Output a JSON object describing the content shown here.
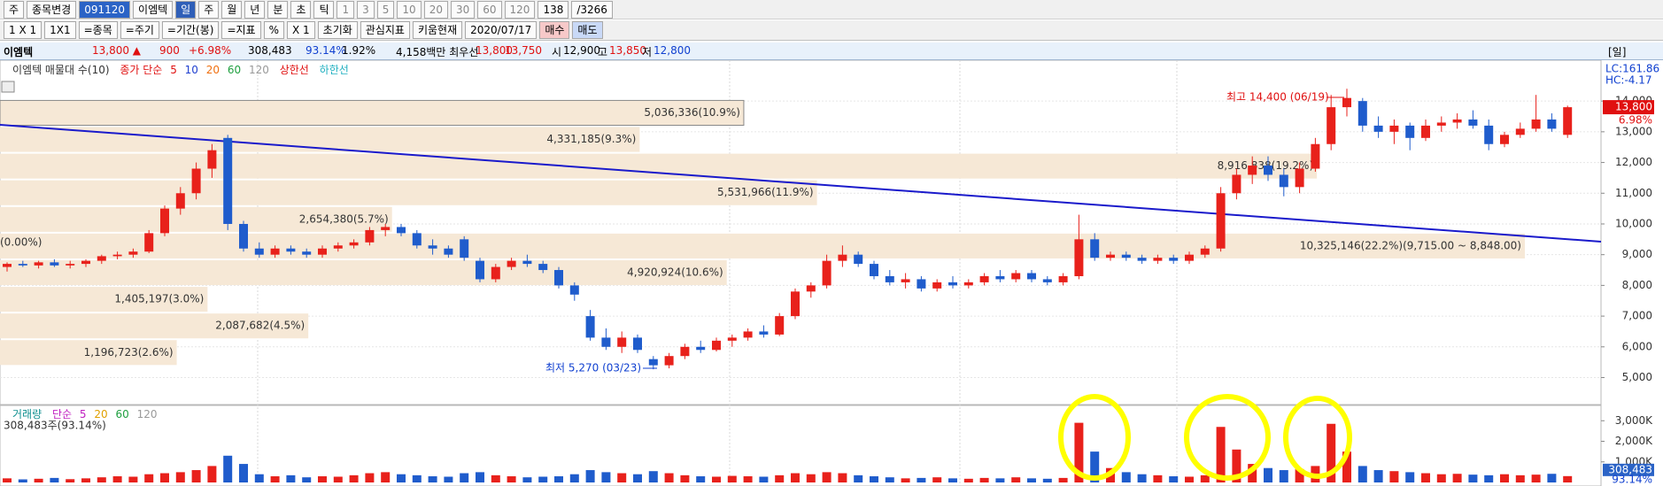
{
  "toolbar": {
    "row1": [
      "주",
      "종목변경",
      "091120",
      "이엠텍",
      "일",
      "주",
      "월",
      "년",
      "분",
      "초",
      "틱",
      "1",
      "3",
      "5",
      "10",
      "20",
      "30",
      "60",
      "120",
      "138",
      "/3266"
    ],
    "row2": [
      "1 X 1",
      "1X1",
      "=종목",
      "=주기",
      "=기간(봉)",
      "=지표",
      "%",
      "X 1",
      "초기화",
      "관심지표",
      "키움현재",
      "2020/07/17",
      "매수",
      "매도"
    ]
  },
  "info": {
    "name": "이엠텍",
    "price": "13,800 ▲",
    "change": "900",
    "change_pct": "+6.98%",
    "volume": "308,483",
    "volume_ratio": "93.14%",
    "turnover": "1.92%",
    "amount": "4,158백만 최우선",
    "ask": "13,800",
    "bid": "13,750",
    "open_label": "시",
    "open": "12,900",
    "high_label": "고",
    "high": "13,850",
    "low_label": "저",
    "low": "12,800",
    "period": "[일]"
  },
  "chart_data": {
    "type": "candlestick",
    "legend": [
      "이엠텍 매물대 수(10)",
      "종가 단순",
      "5",
      "10",
      "20",
      "60",
      "120",
      "상한선",
      "하한선"
    ],
    "indicators": [
      "LC:161.86",
      "HC:-4.17"
    ],
    "price_tag": "13,800",
    "price_tag_pct": "6.98%",
    "left_note": "(0.00%)",
    "annotations": [
      "최고 14,400 (06/19)",
      "최저 5,270 (03/23)"
    ],
    "ylim": [
      4150,
      15330
    ],
    "yticks": [
      {
        "value": 14000,
        "label": "14,000"
      },
      {
        "value": 13000,
        "label": "13,000"
      },
      {
        "value": 12000,
        "label": "12,000"
      },
      {
        "value": 11000,
        "label": "11,000"
      },
      {
        "value": 10000,
        "label": "10,000"
      },
      {
        "value": 9000,
        "label": "9,000"
      },
      {
        "value": 8000,
        "label": "8,000"
      },
      {
        "value": 7000,
        "label": "7,000"
      },
      {
        "value": 6000,
        "label": "6,000"
      },
      {
        "value": 5000,
        "label": "5,000"
      }
    ],
    "volume_profile": [
      {
        "low": 13183,
        "high": 14050,
        "volume": 5036336,
        "label": "5,036,336(10.9%)"
      },
      {
        "low": 12316,
        "high": 13183,
        "volume": 4331185,
        "label": "4,331,185(9.3%)"
      },
      {
        "low": 11449,
        "high": 12316,
        "volume": 8916838,
        "label": "8,916,838(19.2%)"
      },
      {
        "low": 10582,
        "high": 11449,
        "volume": 5531966,
        "label": "5,531,966(11.9%)"
      },
      {
        "low": 9715,
        "high": 10582,
        "volume": 2654380,
        "label": "2,654,380(5.7%)"
      },
      {
        "low": 8848,
        "high": 9715,
        "volume": 10325146,
        "label": "10,325,146(22.2%)(9,715.00 ~ 8,848.00)"
      },
      {
        "low": 7981,
        "high": 8848,
        "volume": 4920924,
        "label": "4,920,924(10.6%)"
      },
      {
        "low": 7114,
        "high": 7981,
        "volume": 1405197,
        "label": "1,405,197(3.0%)"
      },
      {
        "low": 6247,
        "high": 7114,
        "volume": 2087682,
        "label": "2,087,682(4.5%)"
      },
      {
        "low": 5380,
        "high": 6247,
        "volume": 1196723,
        "label": "1,196,723(2.6%)"
      }
    ],
    "candles": [
      [
        8600,
        8750,
        8450,
        8700
      ],
      [
        8700,
        8800,
        8600,
        8650
      ],
      [
        8650,
        8800,
        8550,
        8750
      ],
      [
        8750,
        8850,
        8600,
        8650
      ],
      [
        8650,
        8800,
        8550,
        8700
      ],
      [
        8700,
        8850,
        8600,
        8800
      ],
      [
        8800,
        9000,
        8700,
        8950
      ],
      [
        8950,
        9100,
        8850,
        9000
      ],
      [
        9000,
        9200,
        8900,
        9100
      ],
      [
        9100,
        9800,
        9050,
        9700
      ],
      [
        9700,
        10600,
        9600,
        10500
      ],
      [
        10500,
        11200,
        10300,
        11000
      ],
      [
        11000,
        12000,
        10800,
        11800
      ],
      [
        11800,
        12600,
        11500,
        12400
      ],
      [
        12800,
        12900,
        9800,
        10000
      ],
      [
        10000,
        10100,
        9100,
        9200
      ],
      [
        9200,
        9400,
        8900,
        9000
      ],
      [
        9000,
        9300,
        8900,
        9200
      ],
      [
        9200,
        9300,
        9000,
        9100
      ],
      [
        9100,
        9200,
        8900,
        9000
      ],
      [
        9000,
        9300,
        8900,
        9200
      ],
      [
        9200,
        9400,
        9100,
        9300
      ],
      [
        9300,
        9500,
        9200,
        9400
      ],
      [
        9400,
        9900,
        9300,
        9800
      ],
      [
        9800,
        10000,
        9600,
        9900
      ],
      [
        9900,
        10000,
        9600,
        9700
      ],
      [
        9700,
        9800,
        9200,
        9300
      ],
      [
        9300,
        9500,
        9000,
        9200
      ],
      [
        9200,
        9300,
        8900,
        9000
      ],
      [
        9500,
        9600,
        8800,
        8900
      ],
      [
        8800,
        8900,
        8100,
        8200
      ],
      [
        8200,
        8700,
        8100,
        8600
      ],
      [
        8600,
        8900,
        8500,
        8800
      ],
      [
        8800,
        9000,
        8600,
        8700
      ],
      [
        8700,
        8800,
        8400,
        8500
      ],
      [
        8500,
        8600,
        7900,
        8000
      ],
      [
        8000,
        8100,
        7500,
        7700
      ],
      [
        7000,
        7200,
        6200,
        6300
      ],
      [
        6300,
        6600,
        5900,
        6000
      ],
      [
        6000,
        6500,
        5800,
        6300
      ],
      [
        6300,
        6400,
        5800,
        5900
      ],
      [
        5600,
        5700,
        5270,
        5400
      ],
      [
        5400,
        5800,
        5300,
        5700
      ],
      [
        5700,
        6100,
        5600,
        6000
      ],
      [
        6000,
        6200,
        5800,
        5900
      ],
      [
        5900,
        6300,
        5850,
        6200
      ],
      [
        6200,
        6400,
        6000,
        6300
      ],
      [
        6300,
        6600,
        6200,
        6500
      ],
      [
        6500,
        6700,
        6300,
        6400
      ],
      [
        6400,
        7100,
        6350,
        7000
      ],
      [
        7000,
        7900,
        6900,
        7800
      ],
      [
        7800,
        8100,
        7600,
        8000
      ],
      [
        8000,
        9000,
        7900,
        8800
      ],
      [
        8800,
        9300,
        8600,
        9000
      ],
      [
        9000,
        9100,
        8600,
        8700
      ],
      [
        8700,
        8800,
        8200,
        8300
      ],
      [
        8300,
        8500,
        8000,
        8100
      ],
      [
        8100,
        8400,
        7900,
        8200
      ],
      [
        8200,
        8300,
        7800,
        7900
      ],
      [
        7900,
        8200,
        7800,
        8100
      ],
      [
        8100,
        8300,
        7900,
        8000
      ],
      [
        8000,
        8200,
        7900,
        8100
      ],
      [
        8100,
        8400,
        8000,
        8300
      ],
      [
        8300,
        8500,
        8100,
        8200
      ],
      [
        8200,
        8500,
        8100,
        8400
      ],
      [
        8400,
        8500,
        8100,
        8200
      ],
      [
        8200,
        8300,
        8000,
        8100
      ],
      [
        8100,
        8400,
        8000,
        8300
      ],
      [
        8300,
        10300,
        8200,
        9500
      ],
      [
        9500,
        9700,
        8800,
        8900
      ],
      [
        8900,
        9100,
        8800,
        9000
      ],
      [
        9000,
        9100,
        8800,
        8900
      ],
      [
        8900,
        9000,
        8700,
        8800
      ],
      [
        8800,
        9000,
        8700,
        8900
      ],
      [
        8900,
        9000,
        8700,
        8800
      ],
      [
        8800,
        9100,
        8700,
        9000
      ],
      [
        9000,
        9300,
        8900,
        9200
      ],
      [
        9200,
        11200,
        9100,
        11000
      ],
      [
        11000,
        11800,
        10800,
        11600
      ],
      [
        11600,
        12200,
        11300,
        11900
      ],
      [
        11900,
        12200,
        11400,
        11600
      ],
      [
        11600,
        11800,
        10900,
        11200
      ],
      [
        11200,
        12000,
        11000,
        11800
      ],
      [
        11800,
        12800,
        11700,
        12600
      ],
      [
        12600,
        14200,
        12400,
        13800
      ],
      [
        13800,
        14400,
        13500,
        14100
      ],
      [
        14000,
        14100,
        13000,
        13200
      ],
      [
        13200,
        13500,
        12800,
        13000
      ],
      [
        13000,
        13400,
        12600,
        13200
      ],
      [
        13200,
        13300,
        12400,
        12800
      ],
      [
        12800,
        13400,
        12700,
        13200
      ],
      [
        13200,
        13500,
        13000,
        13300
      ],
      [
        13300,
        13600,
        13100,
        13400
      ],
      [
        13400,
        13700,
        13100,
        13200
      ],
      [
        13200,
        13400,
        12400,
        12600
      ],
      [
        12600,
        13000,
        12500,
        12900
      ],
      [
        12900,
        13300,
        12800,
        13100
      ],
      [
        13100,
        14200,
        13000,
        13400
      ],
      [
        13400,
        13600,
        13000,
        13100
      ],
      [
        12900,
        13850,
        12800,
        13800
      ]
    ],
    "volume": {
      "legend": [
        "거래량",
        "단순",
        "5",
        "20",
        "60",
        "120"
      ],
      "caption": "308,483주(93.14%)",
      "last_label": "308,483",
      "last_pct": "93.14%",
      "ylim": [
        0,
        3700
      ],
      "yticks": [
        {
          "value": 3000,
          "label": "3,000K"
        },
        {
          "value": 2000,
          "label": "2,000K"
        },
        {
          "value": 1000,
          "label": "1,000K"
        }
      ],
      "values": [
        200,
        150,
        180,
        220,
        160,
        200,
        250,
        300,
        280,
        400,
        450,
        500,
        600,
        800,
        1300,
        900,
        400,
        300,
        350,
        250,
        300,
        280,
        350,
        450,
        500,
        400,
        350,
        300,
        280,
        450,
        500,
        350,
        300,
        250,
        280,
        300,
        400,
        600,
        500,
        450,
        400,
        550,
        450,
        350,
        300,
        280,
        320,
        300,
        280,
        350,
        450,
        400,
        500,
        450,
        350,
        300,
        250,
        200,
        220,
        250,
        200,
        180,
        220,
        200,
        250,
        200,
        180,
        220,
        2900,
        1500,
        700,
        500,
        400,
        350,
        300,
        280,
        350,
        2700,
        1600,
        900,
        700,
        600,
        650,
        800,
        2850,
        1500,
        800,
        600,
        550,
        500,
        450,
        400,
        420,
        380,
        350,
        400,
        350,
        380,
        420,
        308.483
      ]
    }
  }
}
